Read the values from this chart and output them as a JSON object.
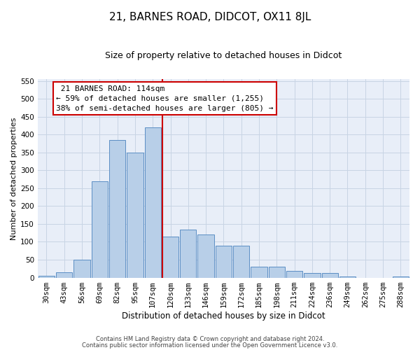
{
  "title": "21, BARNES ROAD, DIDCOT, OX11 8JL",
  "subtitle": "Size of property relative to detached houses in Didcot",
  "xlabel": "Distribution of detached houses by size in Didcot",
  "ylabel": "Number of detached properties",
  "footer_line1": "Contains HM Land Registry data © Crown copyright and database right 2024.",
  "footer_line2": "Contains public sector information licensed under the Open Government Licence v3.0.",
  "annotation_title": "21 BARNES ROAD: 114sqm",
  "annotation_line2": "← 59% of detached houses are smaller (1,255)",
  "annotation_line3": "38% of semi-detached houses are larger (805) →",
  "bar_labels": [
    "30sqm",
    "43sqm",
    "56sqm",
    "69sqm",
    "82sqm",
    "95sqm",
    "107sqm",
    "120sqm",
    "133sqm",
    "146sqm",
    "159sqm",
    "172sqm",
    "185sqm",
    "198sqm",
    "211sqm",
    "224sqm",
    "236sqm",
    "249sqm",
    "262sqm",
    "275sqm",
    "288sqm"
  ],
  "bar_values": [
    5,
    15,
    50,
    270,
    385,
    350,
    420,
    115,
    135,
    120,
    90,
    90,
    30,
    30,
    18,
    12,
    12,
    3,
    0,
    0,
    3
  ],
  "bar_color": "#b8cfe8",
  "bar_edge_color": "#5b8ec4",
  "grid_color": "#c8d4e4",
  "background_color": "#e8eef8",
  "vline_color": "#cc0000",
  "ylim": [
    0,
    555
  ],
  "yticks": [
    0,
    50,
    100,
    150,
    200,
    250,
    300,
    350,
    400,
    450,
    500,
    550
  ],
  "annotation_box_facecolor": "#ffffff",
  "annotation_box_edgecolor": "#cc0000",
  "title_fontsize": 11,
  "subtitle_fontsize": 9,
  "ylabel_fontsize": 8,
  "xlabel_fontsize": 8.5,
  "tick_fontsize": 7.5,
  "annotation_fontsize": 8,
  "footer_fontsize": 6
}
